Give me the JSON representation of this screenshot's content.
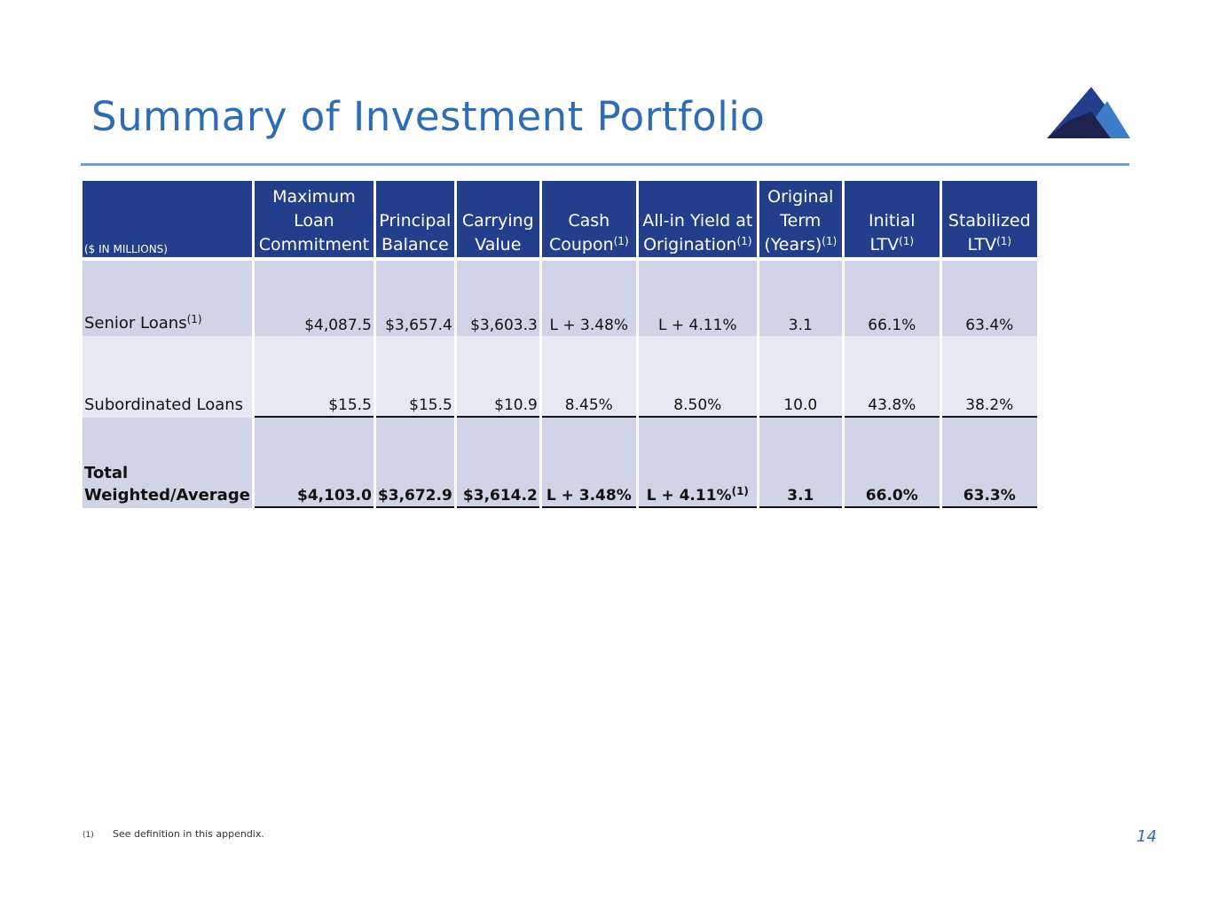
{
  "header": {
    "title": "Summary of Investment Portfolio",
    "colors": {
      "title": "#2e6db4",
      "table_header": "#233f8b",
      "row_dark": "#cfd5e6",
      "row_light": "#e6e9f3"
    },
    "logo": "mountain-logo"
  },
  "table": {
    "units_label": "($ IN MILLIONS)",
    "footnote_marker": "(1)",
    "columns": [
      {
        "lines": [
          "Maximum",
          "Loan",
          "Commitment"
        ],
        "note": ""
      },
      {
        "lines": [
          "Principal",
          "Balance"
        ],
        "note": ""
      },
      {
        "lines": [
          "Carrying",
          "Value"
        ],
        "note": ""
      },
      {
        "lines": [
          "Cash",
          "Coupon"
        ],
        "note": "(1)"
      },
      {
        "lines": [
          "All-in Yield at",
          "Origination"
        ],
        "note": "(1)"
      },
      {
        "lines": [
          "Original",
          "Term",
          "(Years)"
        ],
        "note": "(1)"
      },
      {
        "lines": [
          "Initial",
          "LTV"
        ],
        "note": "(1)"
      },
      {
        "lines": [
          "Stabilized",
          "LTV"
        ],
        "note": "(1)"
      }
    ],
    "rows": [
      {
        "label": "Senior Loans",
        "label_note": "(1)",
        "values": [
          "$4,087.5",
          "$3,657.4",
          "$3,603.3",
          "L + 3.48%",
          "L + 4.11%",
          "3.1",
          "66.1%",
          "63.4%"
        ]
      },
      {
        "label": "Subordinated Loans",
        "label_note": "",
        "values": [
          "$15.5",
          "$15.5",
          "$10.9",
          "8.45%",
          "8.50%",
          "10.0",
          "43.8%",
          "38.2%"
        ]
      },
      {
        "label": "Total Weighted/Average",
        "label_note": "",
        "values": [
          "$4,103.0",
          "$3,672.9",
          "$3,614.2",
          "L + 3.48%",
          "L + 4.11%",
          "3.1",
          "66.0%",
          "63.3%"
        ],
        "value_notes": [
          "",
          "",
          "",
          "",
          "(1)",
          "",
          "",
          ""
        ]
      }
    ]
  },
  "footnote": {
    "marker": "(1)",
    "text": "See definition in this appendix."
  },
  "page_number": "14"
}
